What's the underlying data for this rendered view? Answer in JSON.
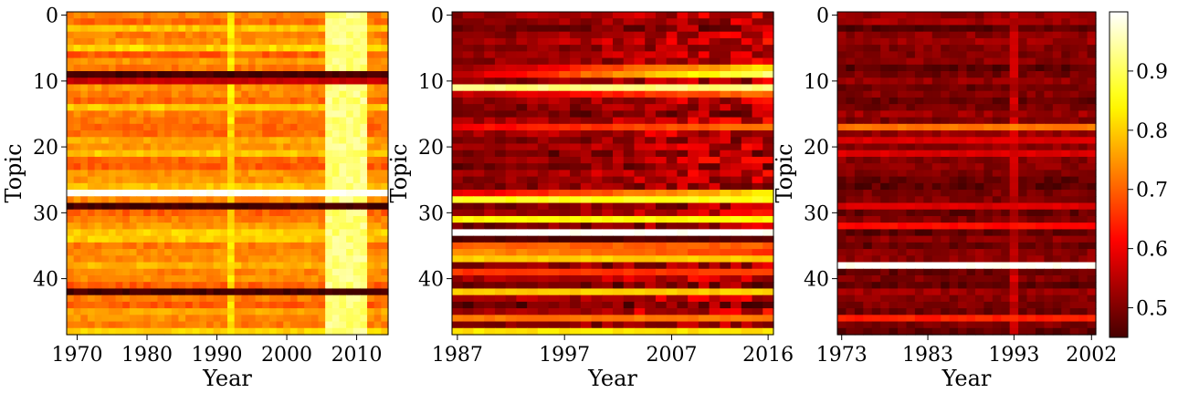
{
  "chart_data": [
    {
      "type": "heatmap",
      "xlabel": "Year",
      "ylabel": "Topic",
      "x_range": [
        1969,
        2014
      ],
      "x_ticks": [
        1970,
        1980,
        1990,
        2000,
        2010
      ],
      "y_range": [
        0,
        48
      ],
      "y_ticks": [
        0,
        10,
        20,
        30,
        40
      ],
      "colormap": "hot",
      "base_value": 0.72,
      "row_overrides": [
        {
          "topic": 9,
          "value": 0.45
        },
        {
          "topic": 10,
          "value": 0.56
        },
        {
          "topic": 27,
          "value": 1.0
        },
        {
          "topic": 29,
          "value": 0.45
        },
        {
          "topic": 42,
          "value": 0.45
        }
      ],
      "bright_rows": [
        2,
        5,
        14,
        19,
        20,
        21,
        24,
        26,
        32,
        33,
        34,
        38,
        45,
        48
      ],
      "column_bands": [
        {
          "year_from": 1992,
          "year_to": 1992,
          "value": 0.82
        },
        {
          "year_from": 2006,
          "year_to": 2011,
          "value": 0.92
        }
      ]
    },
    {
      "type": "heatmap",
      "xlabel": "Year",
      "ylabel": "Topic",
      "x_range": [
        1987,
        2016
      ],
      "x_ticks": [
        1987,
        1997,
        2007,
        2016
      ],
      "y_range": [
        0,
        48
      ],
      "y_ticks": [
        0,
        10,
        20,
        30,
        40
      ],
      "colormap": "hot",
      "base_value": 0.5,
      "row_overrides": [
        {
          "topic": 11,
          "value": 0.92
        },
        {
          "topic": 28,
          "value": 0.86
        },
        {
          "topic": 31,
          "value": 0.84
        },
        {
          "topic": 33,
          "value": 1.0
        },
        {
          "topic": 34,
          "value": 0.46
        },
        {
          "topic": 35,
          "value": 0.7
        },
        {
          "topic": 37,
          "value": 0.8
        },
        {
          "topic": 39,
          "value": 0.66
        },
        {
          "topic": 42,
          "value": 0.8
        },
        {
          "topic": 46,
          "value": 0.72
        },
        {
          "topic": 48,
          "value": 0.82
        }
      ],
      "trend_rows": [
        {
          "topic": 8,
          "start": 0.52,
          "end": 0.82
        },
        {
          "topic": 9,
          "start": 0.55,
          "end": 0.92
        },
        {
          "topic": 12,
          "start": 0.55,
          "end": 0.72
        },
        {
          "topic": 17,
          "start": 0.6,
          "end": 0.72
        },
        {
          "topic": 27,
          "start": 0.58,
          "end": 0.82
        },
        {
          "topic": 36,
          "start": 0.75,
          "end": 0.66
        }
      ]
    },
    {
      "type": "heatmap",
      "xlabel": "Year",
      "ylabel": "Topic",
      "x_range": [
        1973,
        2002
      ],
      "x_ticks": [
        1973,
        1983,
        1993,
        2002
      ],
      "y_range": [
        0,
        48
      ],
      "y_ticks": [
        0,
        10,
        20,
        30,
        40
      ],
      "colormap": "hot",
      "base_value": 0.5,
      "row_overrides": [
        {
          "topic": 17,
          "value": 0.72
        },
        {
          "topic": 19,
          "value": 0.58
        },
        {
          "topic": 21,
          "value": 0.58
        },
        {
          "topic": 29,
          "value": 0.58
        },
        {
          "topic": 32,
          "value": 0.62
        },
        {
          "topic": 38,
          "value": 1.0
        },
        {
          "topic": 46,
          "value": 0.64
        }
      ],
      "column_bands": [
        {
          "year_from": 1993,
          "year_to": 1993,
          "value": 0.56
        }
      ]
    }
  ],
  "colorbar": {
    "range": [
      0.45,
      1.0
    ],
    "ticks": [
      "0.5",
      "0.6",
      "0.7",
      "0.8",
      "0.9"
    ]
  }
}
